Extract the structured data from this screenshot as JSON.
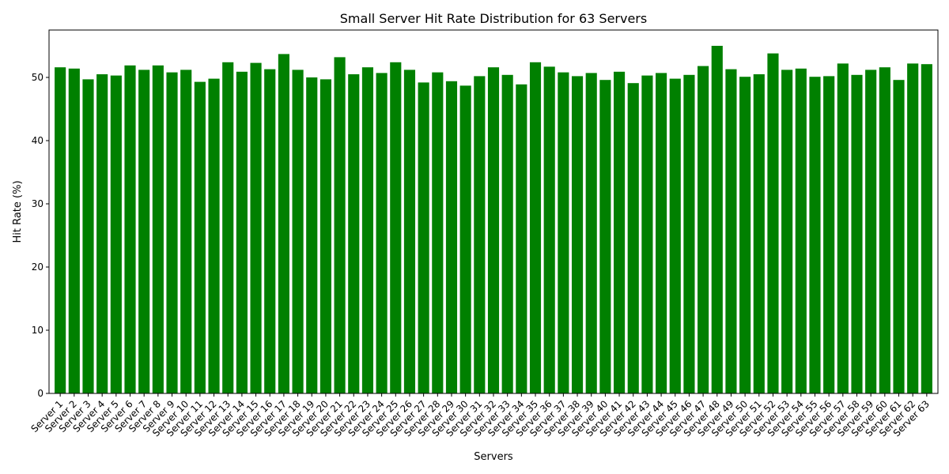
{
  "chart_data": {
    "type": "bar",
    "title": "Small Server Hit Rate Distribution for 63 Servers",
    "xlabel": "Servers",
    "ylabel": "Hit Rate (%)",
    "ylim": [
      0,
      57.5
    ],
    "yticks": [
      0,
      10,
      20,
      30,
      40,
      50
    ],
    "bar_color": "#008000",
    "grid": false,
    "categories": [
      "Server 1",
      "Server 2",
      "Server 3",
      "Server 4",
      "Server 5",
      "Server 6",
      "Server 7",
      "Server 8",
      "Server 9",
      "Server 10",
      "Server 11",
      "Server 12",
      "Server 13",
      "Server 14",
      "Server 15",
      "Server 16",
      "Server 17",
      "Server 18",
      "Server 19",
      "Server 20",
      "Server 21",
      "Server 22",
      "Server 23",
      "Server 24",
      "Server 25",
      "Server 26",
      "Server 27",
      "Server 28",
      "Server 29",
      "Server 30",
      "Server 31",
      "Server 32",
      "Server 33",
      "Server 34",
      "Server 35",
      "Server 36",
      "Server 37",
      "Server 38",
      "Server 39",
      "Server 40",
      "Server 41",
      "Server 42",
      "Server 43",
      "Server 44",
      "Server 45",
      "Server 46",
      "Server 47",
      "Server 48",
      "Server 49",
      "Server 50",
      "Server 51",
      "Server 52",
      "Server 53",
      "Server 54",
      "Server 55",
      "Server 56",
      "Server 57",
      "Server 58",
      "Server 59",
      "Server 60",
      "Server 61",
      "Server 62",
      "Server 63"
    ],
    "values": [
      51.6,
      51.4,
      49.7,
      50.5,
      50.3,
      51.9,
      51.2,
      51.9,
      50.8,
      51.2,
      49.3,
      49.8,
      52.4,
      50.9,
      52.3,
      51.3,
      53.7,
      51.2,
      50.0,
      49.7,
      53.2,
      50.5,
      51.6,
      50.7,
      52.4,
      51.2,
      49.2,
      50.8,
      49.4,
      48.7,
      50.2,
      51.6,
      50.4,
      48.9,
      52.4,
      51.7,
      50.8,
      50.2,
      50.7,
      49.6,
      50.9,
      49.1,
      50.3,
      50.7,
      49.8,
      50.4,
      51.8,
      55.0,
      51.3,
      50.1,
      50.5,
      53.8,
      51.2,
      51.4,
      50.1,
      50.2,
      52.2,
      50.4,
      51.2,
      51.6,
      49.6,
      52.2,
      52.1
    ]
  }
}
